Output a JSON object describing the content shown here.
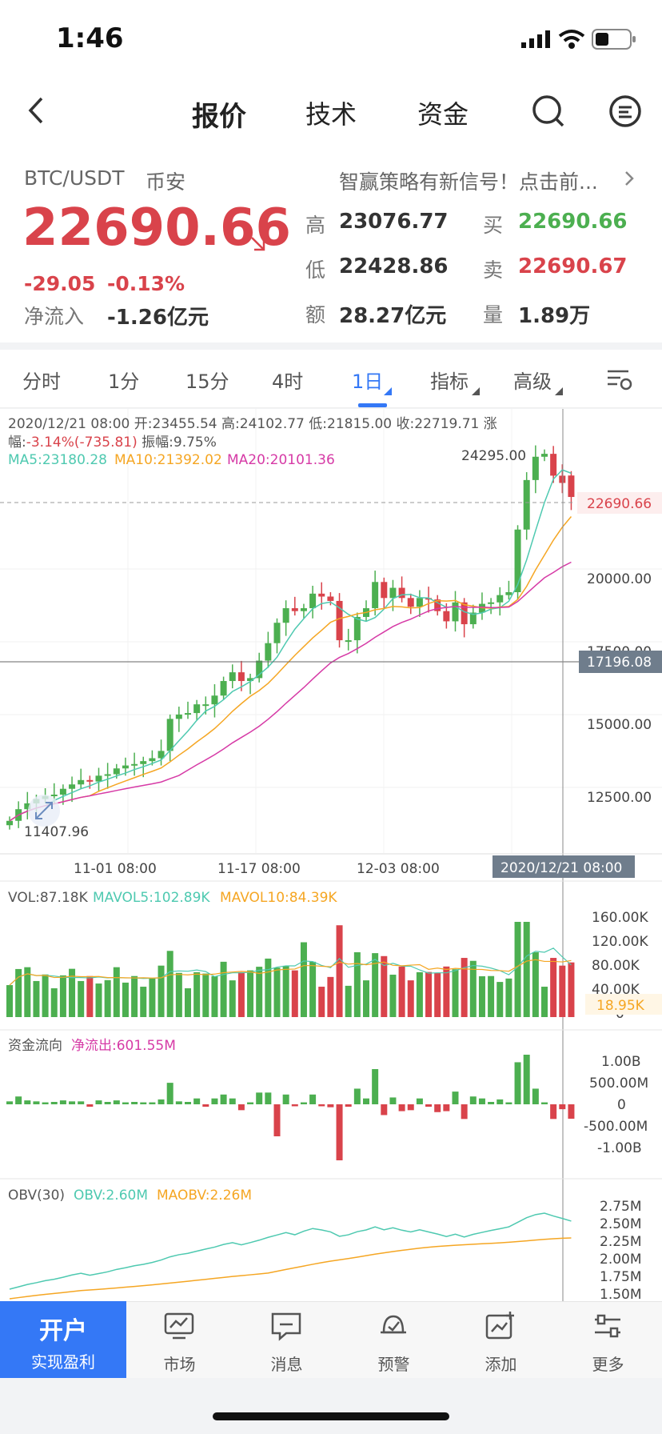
{
  "status": {
    "time": "1:46"
  },
  "nav": {
    "tabs": [
      {
        "label": "报价"
      },
      {
        "label": "技术"
      },
      {
        "label": "资金"
      }
    ]
  },
  "quote": {
    "pair": "BTC/USDT",
    "exchange": "币安",
    "banner": "智赢策略有新信号！点击前...",
    "price": "22690.66",
    "change": "-29.05",
    "change_pct": "-0.13%",
    "net_inflow_label": "净流入",
    "net_inflow": "-1.26亿元",
    "high_label": "高",
    "high": "23076.77",
    "low_label": "低",
    "low": "22428.86",
    "amount_label": "额",
    "amount": "28.27亿元",
    "buy_label": "买",
    "buy": "22690.66",
    "sell_label": "卖",
    "sell": "22690.67",
    "vol_label": "量",
    "vol": "1.89万"
  },
  "periods": [
    {
      "label": "分时"
    },
    {
      "label": "1分"
    },
    {
      "label": "15分"
    },
    {
      "label": "4时"
    },
    {
      "label": "1日"
    },
    {
      "label": "指标"
    },
    {
      "label": "高级"
    }
  ],
  "chart": {
    "info_line1": "2020/12/21 08:00 开:23455.54 高:24102.77 低:21815.00 收:22719.71 涨",
    "info_line2_a": "幅:",
    "info_line2_b": "-3.14%(-735.81)",
    "info_line2_c": " 振幅:9.75%",
    "ma5": "MA5:23180.28",
    "ma10": "MA10:21392.02",
    "ma20": "MA20:20101.36",
    "max_label": "24295.00",
    "min_label": "11407.96",
    "last_price_tag": "22690.66",
    "cursor_price_tag": "17196.08",
    "y_ticks": [
      "20000.00",
      "17500.00",
      "15000.00",
      "12500.00"
    ],
    "x_ticks": [
      "11-01 08:00",
      "11-17 08:00",
      "12-03 08:00"
    ],
    "cursor_date": "2020/12/21 08:00",
    "vol": "VOL:87.18K",
    "mavol5": "MAVOL5:102.89K",
    "mavol10": "MAVOL10:84.39K",
    "vol_ticks": [
      "160.00K",
      "120.00K",
      "80.00K",
      "40.00K",
      "0"
    ],
    "vol_tag": "18.95K",
    "flow_title": "资金流向",
    "flow_net": "净流出:601.55M",
    "flow_ticks": [
      "1.00B",
      "500.00M",
      "0",
      "-500.00M",
      "-1.00B"
    ],
    "obv": "OBV(30)",
    "obv_val": "OBV:2.60M",
    "maobv": "MAOBV:2.26M",
    "obv_ticks": [
      "2.75M",
      "2.50M",
      "2.25M",
      "2.00M",
      "1.75M",
      "1.50M"
    ],
    "colors": {
      "up": "#4caf50",
      "down": "#d9434b",
      "ma5": "#4ec9b0",
      "ma10": "#f5a623",
      "ma20": "#d63aa6"
    }
  },
  "chart_data": {
    "type": "candlestick",
    "closes": [
      11600,
      12000,
      12200,
      12350,
      12450,
      12500,
      12700,
      12850,
      13000,
      12950,
      13150,
      13200,
      13400,
      13500,
      13550,
      13650,
      13750,
      14000,
      15100,
      15250,
      15300,
      15600,
      15600,
      15900,
      16400,
      16700,
      16400,
      16500,
      17100,
      17700,
      18400,
      18900,
      18800,
      18900,
      19400,
      19300,
      19150,
      17800,
      17800,
      18600,
      18900,
      19800,
      19250,
      19600,
      19250,
      18950,
      19250,
      19200,
      18800,
      18450,
      19100,
      18350,
      18750,
      19050,
      19100,
      19350,
      19450,
      21600,
      23300,
      24100,
      24200,
      23450,
      23200,
      22719
    ],
    "last_price": 22690.66,
    "high_marked": 24295.0,
    "low_marked": 11407.96
  },
  "bottom": {
    "open_title": "开户",
    "open_sub": "实现盈利",
    "items": [
      {
        "label": "市场"
      },
      {
        "label": "消息"
      },
      {
        "label": "预警"
      },
      {
        "label": "添加"
      },
      {
        "label": "更多"
      }
    ]
  }
}
